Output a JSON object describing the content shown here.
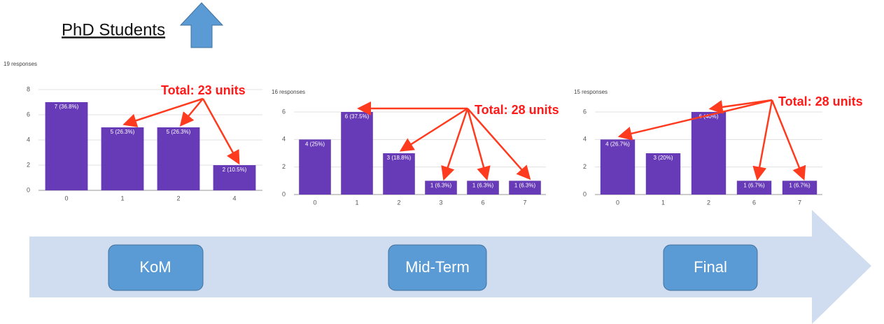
{
  "header": {
    "title": "PhD Students"
  },
  "timeline": {
    "stages": [
      "KoM",
      "Mid-Term",
      "Final"
    ]
  },
  "chart_data": [
    {
      "type": "bar",
      "subtitle": "19 responses",
      "annotation": "Total: 23 units",
      "categories": [
        "0",
        "1",
        "2",
        "4"
      ],
      "values": [
        7,
        5,
        5,
        2
      ],
      "value_labels": [
        "7 (36.8%)",
        "5 (26.3%)",
        "5 (26.3%)",
        "2 (10.5%)"
      ],
      "color": "#673ab7",
      "ylim": [
        0,
        8
      ],
      "yticks": [
        0,
        2,
        4,
        6,
        8
      ],
      "grid": true
    },
    {
      "type": "bar",
      "subtitle": "16 responses",
      "annotation": "Total: 28 units",
      "categories": [
        "0",
        "1",
        "2",
        "3",
        "6",
        "7"
      ],
      "values": [
        4,
        6,
        3,
        1,
        1,
        1
      ],
      "value_labels": [
        "4 (25%)",
        "6 (37.5%)",
        "3 (18.8%)",
        "1 (6.3%)",
        "1 (6.3%)",
        "1 (6.3%)"
      ],
      "color": "#673ab7",
      "ylim": [
        0,
        6
      ],
      "yticks": [
        0,
        2,
        4,
        6
      ],
      "grid": true
    },
    {
      "type": "bar",
      "subtitle": "15 responses",
      "annotation": "Total: 28 units",
      "categories": [
        "0",
        "1",
        "2",
        "6",
        "7"
      ],
      "values": [
        4,
        3,
        6,
        1,
        1
      ],
      "value_labels": [
        "4 (26.7%)",
        "3 (20%)",
        "6 (40%)",
        "1 (6.7%)",
        "1 (6.7%)"
      ],
      "color": "#673ab7",
      "ylim": [
        0,
        6
      ],
      "yticks": [
        0,
        2,
        4,
        6
      ],
      "grid": true
    }
  ]
}
